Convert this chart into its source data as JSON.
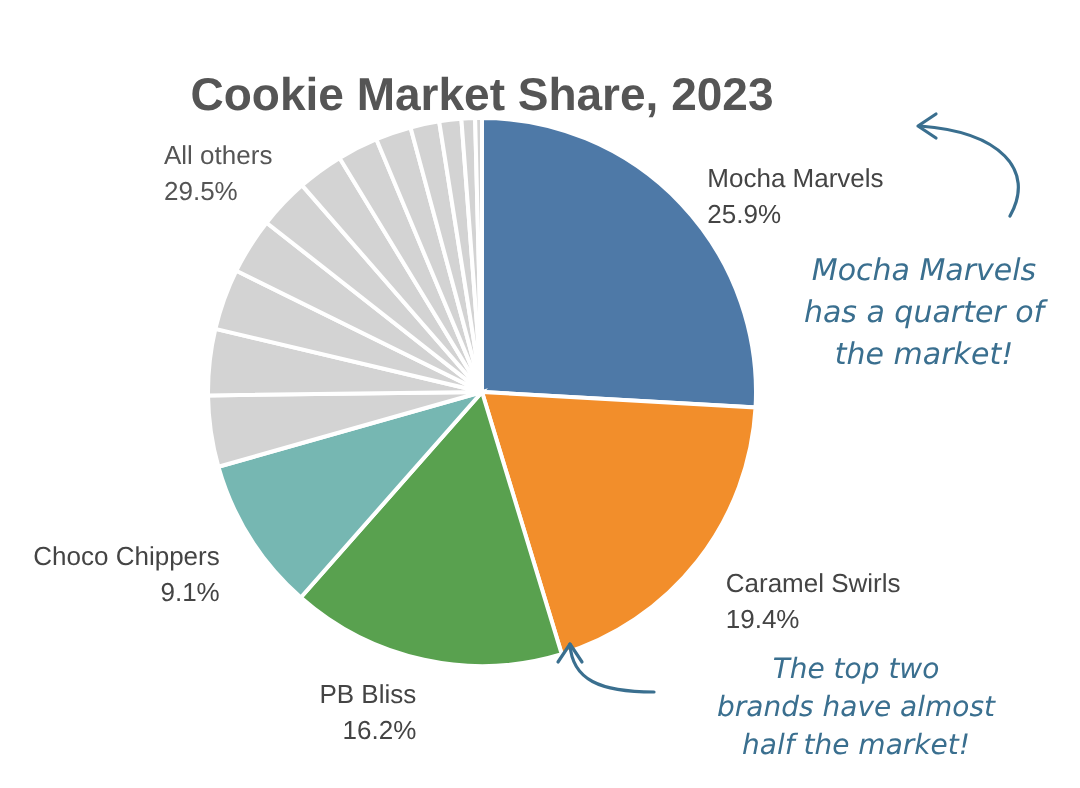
{
  "chart_data": {
    "type": "pie",
    "title": "Cookie Market Share, 2023",
    "categories": [
      "Mocha Marvels",
      "Caramel Swirls",
      "PB Bliss",
      "Choco Chippers",
      null,
      null,
      null,
      null,
      null,
      null,
      null,
      null,
      null,
      null,
      null,
      null
    ],
    "values": [
      25.9,
      19.4,
      16.2,
      9.1,
      4.2,
      3.9,
      3.6,
      3.3,
      3.0,
      2.7,
      2.4,
      2.1,
      1.7,
      1.3,
      0.8,
      0.4
    ],
    "value_labels": [
      "25.9%",
      "19.4%",
      "16.2%",
      "9.1%",
      null,
      null,
      null,
      null,
      null,
      null,
      null,
      null,
      null,
      null,
      null,
      null
    ],
    "colors": [
      "#4e79a7",
      "#f28e2b",
      "#59a14f",
      "#76b7b2",
      "#d3d3d3",
      "#d3d3d3",
      "#d3d3d3",
      "#d3d3d3",
      "#d3d3d3",
      "#d3d3d3",
      "#d3d3d3",
      "#d3d3d3",
      "#d3d3d3",
      "#d3d3d3",
      "#d3d3d3",
      "#d3d3d3"
    ],
    "legend": false,
    "annotations": [
      "All others\n29.5%",
      "Mocha Marvels\nhas a quarter of\nthe market!",
      "The top two\nbrands have almost\nhalf the market!"
    ]
  }
}
